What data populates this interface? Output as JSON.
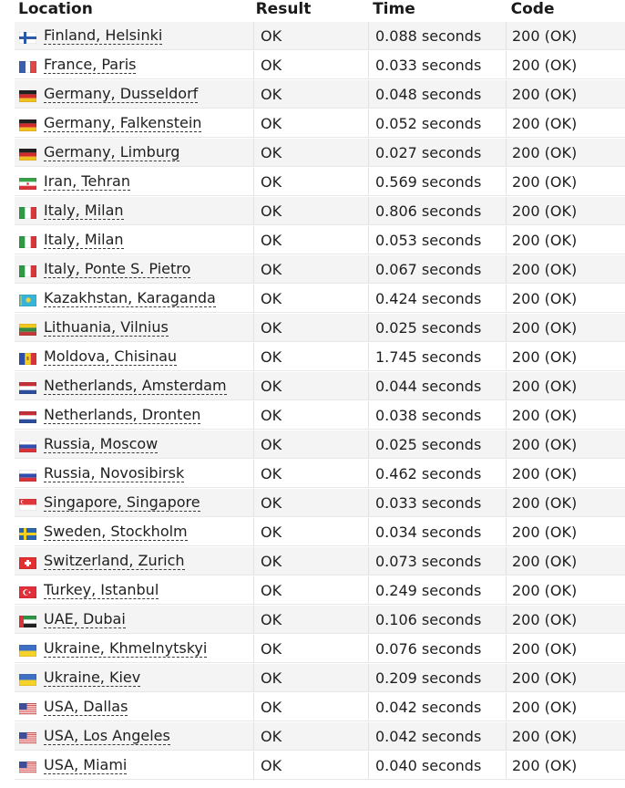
{
  "headers": {
    "location": "Location",
    "result": "Result",
    "time": "Time",
    "code": "Code"
  },
  "rows": [
    {
      "location": "Finland, Helsinki",
      "flag": "finland-flag-icon",
      "result": "OK",
      "time": "0.088 seconds",
      "code": "200 (OK)"
    },
    {
      "location": "France, Paris",
      "flag": "france-flag-icon",
      "result": "OK",
      "time": "0.033 seconds",
      "code": "200 (OK)"
    },
    {
      "location": "Germany, Dusseldorf",
      "flag": "germany-flag-icon",
      "result": "OK",
      "time": "0.048 seconds",
      "code": "200 (OK)"
    },
    {
      "location": "Germany, Falkenstein",
      "flag": "germany-flag-icon",
      "result": "OK",
      "time": "0.052 seconds",
      "code": "200 (OK)"
    },
    {
      "location": "Germany, Limburg",
      "flag": "germany-flag-icon",
      "result": "OK",
      "time": "0.027 seconds",
      "code": "200 (OK)"
    },
    {
      "location": "Iran, Tehran",
      "flag": "iran-flag-icon",
      "result": "OK",
      "time": "0.569 seconds",
      "code": "200 (OK)"
    },
    {
      "location": "Italy, Milan",
      "flag": "italy-flag-icon",
      "result": "OK",
      "time": "0.806 seconds",
      "code": "200 (OK)"
    },
    {
      "location": "Italy, Milan",
      "flag": "italy-flag-icon",
      "result": "OK",
      "time": "0.053 seconds",
      "code": "200 (OK)"
    },
    {
      "location": "Italy, Ponte S. Pietro",
      "flag": "italy-flag-icon",
      "result": "OK",
      "time": "0.067 seconds",
      "code": "200 (OK)"
    },
    {
      "location": "Kazakhstan, Karaganda",
      "flag": "kazakhstan-flag-icon",
      "result": "OK",
      "time": "0.424 seconds",
      "code": "200 (OK)"
    },
    {
      "location": "Lithuania, Vilnius",
      "flag": "lithuania-flag-icon",
      "result": "OK",
      "time": "0.025 seconds",
      "code": "200 (OK)"
    },
    {
      "location": "Moldova, Chisinau",
      "flag": "moldova-flag-icon",
      "result": "OK",
      "time": "1.745 seconds",
      "code": "200 (OK)"
    },
    {
      "location": "Netherlands, Amsterdam",
      "flag": "netherlands-flag-icon",
      "result": "OK",
      "time": "0.044 seconds",
      "code": "200 (OK)"
    },
    {
      "location": "Netherlands, Dronten",
      "flag": "netherlands-flag-icon",
      "result": "OK",
      "time": "0.038 seconds",
      "code": "200 (OK)"
    },
    {
      "location": "Russia, Moscow",
      "flag": "russia-flag-icon",
      "result": "OK",
      "time": "0.025 seconds",
      "code": "200 (OK)"
    },
    {
      "location": "Russia, Novosibirsk",
      "flag": "russia-flag-icon",
      "result": "OK",
      "time": "0.462 seconds",
      "code": "200 (OK)"
    },
    {
      "location": "Singapore, Singapore",
      "flag": "singapore-flag-icon",
      "result": "OK",
      "time": "0.033 seconds",
      "code": "200 (OK)"
    },
    {
      "location": "Sweden, Stockholm",
      "flag": "sweden-flag-icon",
      "result": "OK",
      "time": "0.034 seconds",
      "code": "200 (OK)"
    },
    {
      "location": "Switzerland, Zurich",
      "flag": "switzerland-flag-icon",
      "result": "OK",
      "time": "0.073 seconds",
      "code": "200 (OK)"
    },
    {
      "location": "Turkey, Istanbul",
      "flag": "turkey-flag-icon",
      "result": "OK",
      "time": "0.249 seconds",
      "code": "200 (OK)"
    },
    {
      "location": "UAE, Dubai",
      "flag": "uae-flag-icon",
      "result": "OK",
      "time": "0.106 seconds",
      "code": "200 (OK)"
    },
    {
      "location": "Ukraine, Khmelnytskyi",
      "flag": "ukraine-flag-icon",
      "result": "OK",
      "time": "0.076 seconds",
      "code": "200 (OK)"
    },
    {
      "location": "Ukraine, Kiev",
      "flag": "ukraine-flag-icon",
      "result": "OK",
      "time": "0.209 seconds",
      "code": "200 (OK)"
    },
    {
      "location": "USA, Dallas",
      "flag": "usa-flag-icon",
      "result": "OK",
      "time": "0.042 seconds",
      "code": "200 (OK)"
    },
    {
      "location": "USA, Los Angeles",
      "flag": "usa-flag-icon",
      "result": "OK",
      "time": "0.042 seconds",
      "code": "200 (OK)"
    },
    {
      "location": "USA, Miami",
      "flag": "usa-flag-icon",
      "result": "OK",
      "time": "0.040 seconds",
      "code": "200 (OK)"
    }
  ],
  "colors": {
    "row_alt": "#f4f4f4",
    "row_base": "#ffffff",
    "text": "#1e1e1e"
  }
}
